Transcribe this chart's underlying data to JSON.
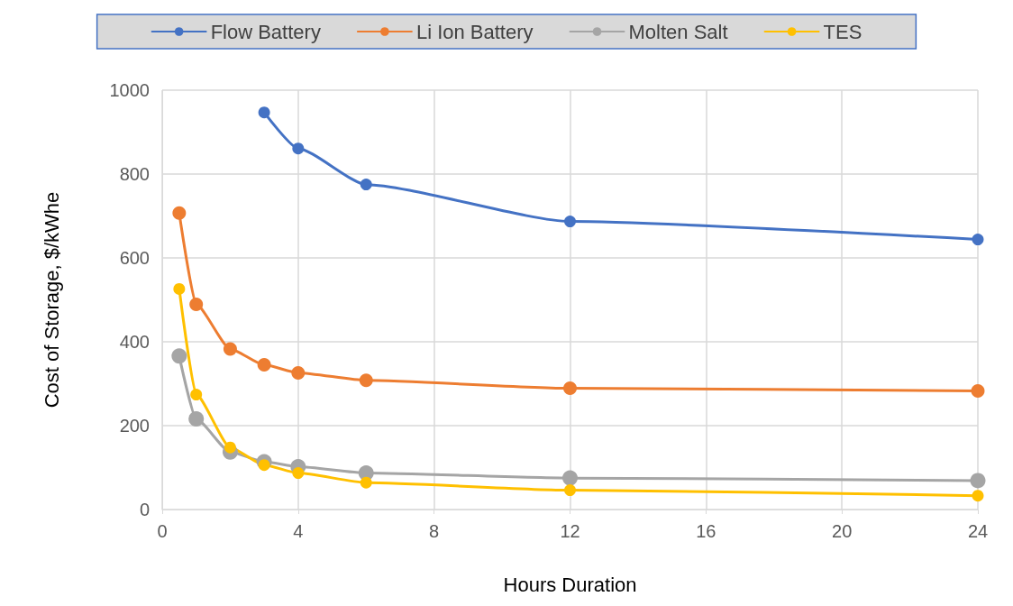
{
  "chart_data": {
    "type": "line",
    "xlabel": "Hours Duration",
    "ylabel": "Cost of Storage, $/kWhe",
    "x": [
      0.5,
      1,
      2,
      3,
      4,
      6,
      12,
      24
    ],
    "series": [
      {
        "name": "Flow Battery",
        "color": "#4472c4",
        "values": [
          null,
          null,
          null,
          947,
          861,
          775,
          687,
          644
        ]
      },
      {
        "name": "Li Ion Battery",
        "color": "#ed7d31",
        "values": [
          707,
          489,
          383,
          345,
          326,
          308,
          289,
          283
        ]
      },
      {
        "name": "Molten Salt",
        "color": "#a5a5a5",
        "values": [
          366,
          216,
          137,
          114,
          102,
          87,
          75,
          69
        ]
      },
      {
        "name": "TES",
        "color": "#ffc000",
        "values": [
          526,
          274,
          148,
          106,
          87,
          64,
          46,
          33
        ]
      }
    ],
    "xlim": [
      0,
      24
    ],
    "xticks": [
      0,
      4,
      8,
      12,
      16,
      20,
      24
    ],
    "ylim": [
      0,
      1000
    ],
    "yticks": [
      0,
      200,
      400,
      600,
      800,
      1000
    ],
    "grid": true,
    "legend": "top",
    "marker": "circle",
    "line_style": "solid"
  }
}
